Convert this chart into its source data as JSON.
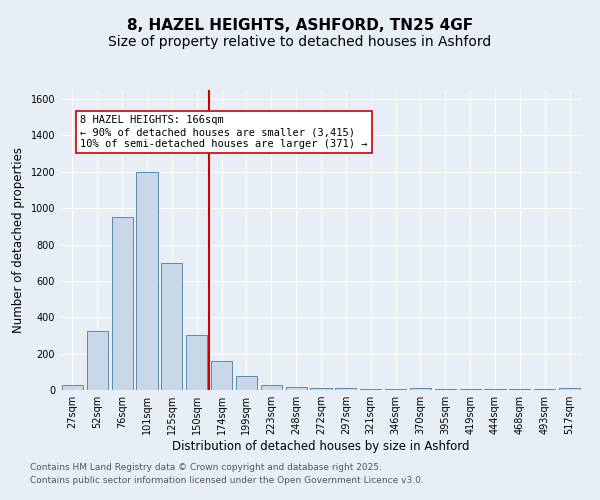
{
  "title_line1": "8, HAZEL HEIGHTS, ASHFORD, TN25 4GF",
  "title_line2": "Size of property relative to detached houses in Ashford",
  "xlabel": "Distribution of detached houses by size in Ashford",
  "ylabel": "Number of detached properties",
  "categories": [
    "27sqm",
    "52sqm",
    "76sqm",
    "101sqm",
    "125sqm",
    "150sqm",
    "174sqm",
    "199sqm",
    "223sqm",
    "248sqm",
    "272sqm",
    "297sqm",
    "321sqm",
    "346sqm",
    "370sqm",
    "395sqm",
    "419sqm",
    "444sqm",
    "468sqm",
    "493sqm",
    "517sqm"
  ],
  "values": [
    25,
    325,
    950,
    1200,
    700,
    300,
    160,
    75,
    25,
    15,
    10,
    10,
    5,
    5,
    10,
    5,
    5,
    5,
    5,
    5,
    10
  ],
  "bar_color": "#c8d8e8",
  "bar_edge_color": "#5a8ab0",
  "vline_color": "#cc0000",
  "annotation_text": "8 HAZEL HEIGHTS: 166sqm\n← 90% of detached houses are smaller (3,415)\n10% of semi-detached houses are larger (371) →",
  "annotation_box_color": "#ffffff",
  "annotation_box_edge_color": "#cc0000",
  "ylim": [
    0,
    1650
  ],
  "yticks": [
    0,
    200,
    400,
    600,
    800,
    1000,
    1200,
    1400,
    1600
  ],
  "footnote_line1": "Contains HM Land Registry data © Crown copyright and database right 2025.",
  "footnote_line2": "Contains public sector information licensed under the Open Government Licence v3.0.",
  "background_color": "#e8eef5",
  "plot_background_color": "#e8eef5",
  "title_fontsize": 11,
  "subtitle_fontsize": 10,
  "axis_label_fontsize": 8.5,
  "tick_fontsize": 7,
  "annotation_fontsize": 7.5,
  "footnote_fontsize": 6.5
}
